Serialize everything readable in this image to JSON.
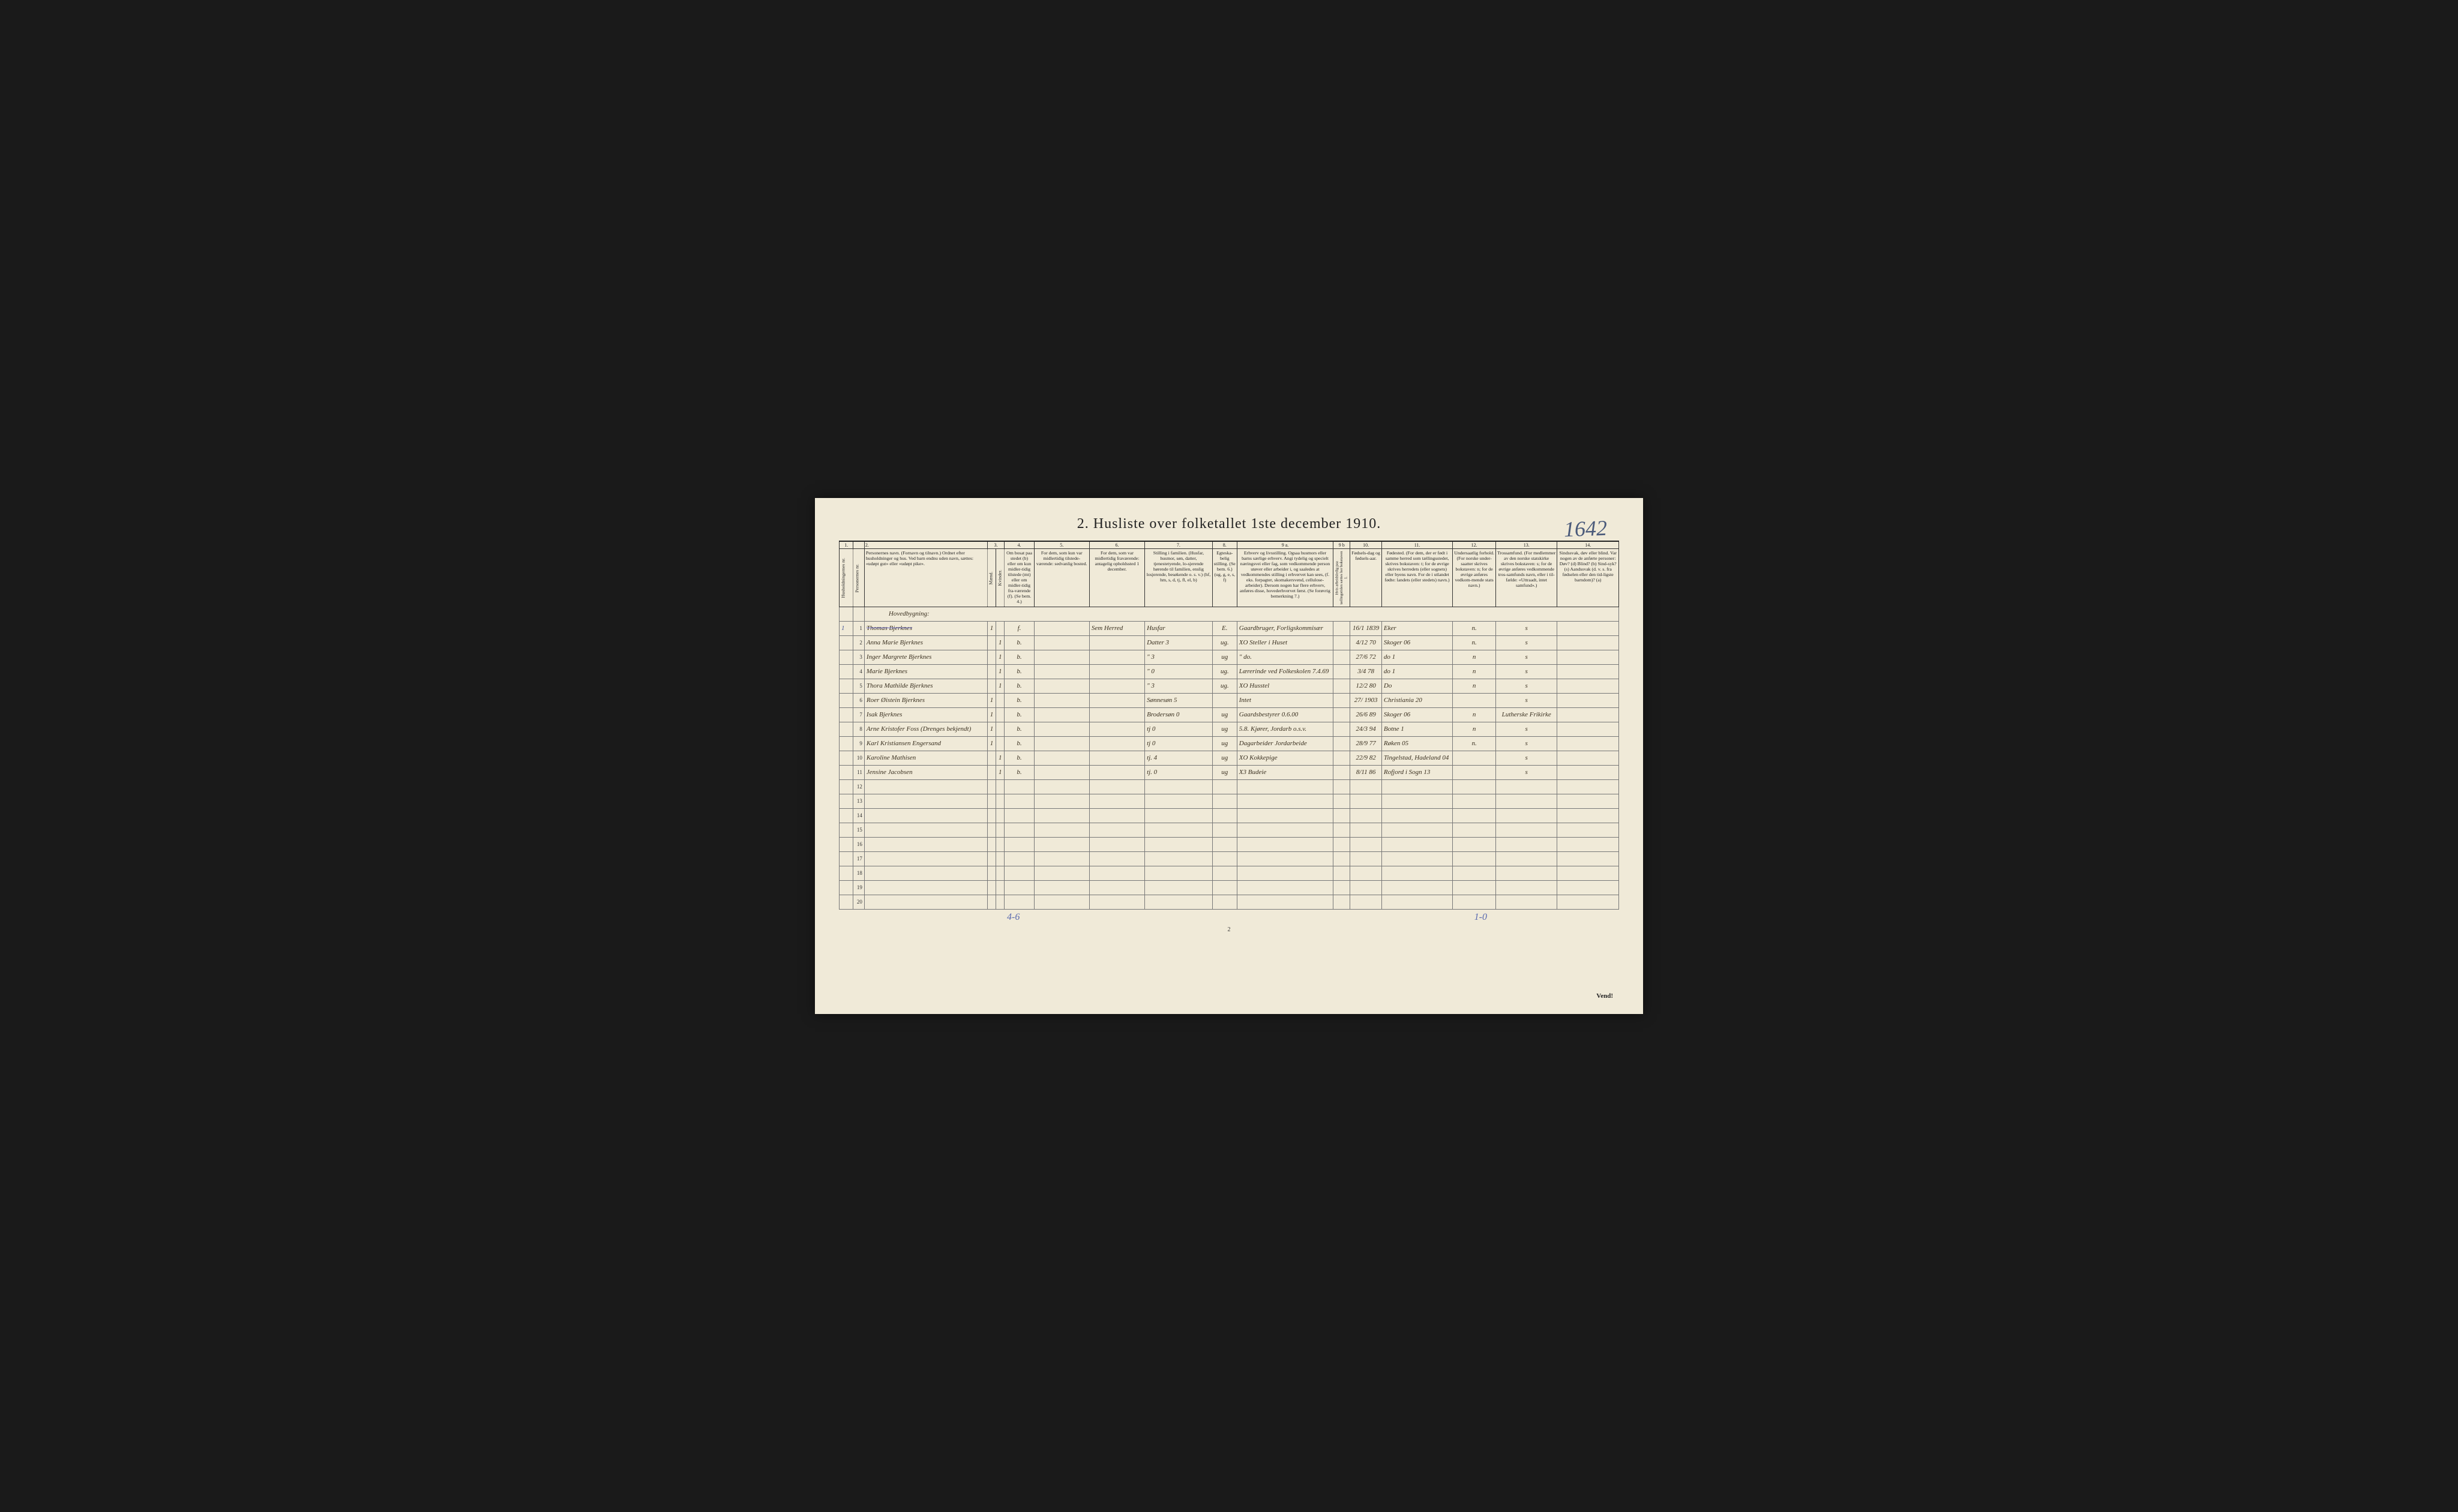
{
  "page_handwritten_number": "1642",
  "title": "2.  Husliste over folketallet 1ste december 1910.",
  "bottom_page": "2",
  "tally_left": "4-6",
  "tally_right": "1-0",
  "vend": "Vend!",
  "section_label": "Hovedbygning:",
  "columns": {
    "nums": [
      "1.",
      "",
      "2.",
      "3.",
      "",
      "4.",
      "5.",
      "6.",
      "7.",
      "8.",
      "9 a.",
      "9 b",
      "10.",
      "11.",
      "12.",
      "13.",
      "14."
    ],
    "h1": "Husholdningernes nr.",
    "h2": "Personernes nr.",
    "h3": "Personernes navn.\n(Fornavn og tilnavn.)\nOrdnet efter husholdninger og hus.\nVed barn endnu uden navn, sættes: «udøpt gut» eller «udøpt pike».",
    "h4m": "Mænd.",
    "h4k": "Kvinder.",
    "h4": "Kjøn.\nm. k.",
    "h5": "Om bosat paa stedet (b) eller om kun midler-tidig tilstede (mt) eller om midler-tidig fra-værende (f). (Se bem. 4.)",
    "h6": "For dem, som kun var midlertidig tilstede-værende:\nsedvanlig bosted.",
    "h7": "For dem, som var midlertidig fraværende:\nantagelig opholdssted 1 december.",
    "h8": "Stilling i familien.\n(Husfar, husmor, søn, datter, tjenestetyende, lo-sjerende hørende til familien, enslig losjerende, besøkende o. s. v.)\n(hf, hm, s, d, tj, fl, el, b)",
    "h9": "Egteska-belig stilling. (Se bem. 6.) (ug, g, e, s, f)",
    "h10": "Erhverv og livsstilling.\nOgsaa husmors eller barns særlige erhverv. Angi tydelig og specielt næringsvei eller fag, som vedkommende person utøver eller arbeider i, og saaledes at vedkommendes stilling i erhvervet kan sees, (f. eks. forpagter, skomakersvend, cellulose-arbeider). Dersom nogen har flere erhverv, anføres disse, hovederhvervet først. (Se forøvrig bemerkning 7.)",
    "h11": "Hvis arbeidsledig paa tællingstiden sættes her bokstaven l.",
    "h12": "Fødsels-dag og fødsels-aar.",
    "h13": "Fødested.\n(For dem, der er født i samme herred som tællingsstedet, skrives bokstaven: t; for de øvrige skrives herredets (eller sognets) eller byens navn. For de i utlandet fødte: landets (eller stedets) navn.)",
    "h14": "Undersaatlig forhold.\n(For norske under-saatter skrives bokstaven: n; for de øvrige anføres vedkom-mende stats navn.)",
    "h15": "Trossamfund.\n(For medlemmer av den norske statskirke skrives bokstaven: s; for de øvrige anføres vedkommende tros-samfunds navn, eller i til-fælde: «Uttraadt, intet samfund».)",
    "h16": "Sindssvak, døv eller blind.\nVar nogen av de anførte personer:\nDøv? (d)\nBlind? (b)\nSind-syk? (s)\nAandssvak (d. v. s. fra fødselen eller den tid-ligste barndom)? (a)"
  },
  "rows": [
    {
      "hh": "1",
      "n": "1",
      "name": "Thomas Bjerknes",
      "m": "1",
      "k": "",
      "res": "f.",
      "mt": "",
      "fr": "Sem Herred",
      "fam": "Husfar",
      "eg": "E.",
      "erv": "Gaardbruger, Forligskommisær",
      "al": "",
      "dob": "16/1 1839",
      "bst": "Eker",
      "nat": "n.",
      "rel": "s",
      "inf": ""
    },
    {
      "hh": "",
      "n": "2",
      "name": "Anna Marie Bjerknes",
      "m": "",
      "k": "1",
      "res": "b.",
      "mt": "",
      "fr": "",
      "fam": "Datter   3",
      "eg": "ug.",
      "erv": "XO  Steller i Huset",
      "al": "",
      "dob": "4/12 70",
      "bst": "Skoger 06",
      "nat": "n.",
      "rel": "s",
      "inf": ""
    },
    {
      "hh": "",
      "n": "3",
      "name": "Inger Margrete Bjerknes",
      "m": "",
      "k": "1",
      "res": "b.",
      "mt": "",
      "fr": "",
      "fam": "\"    3",
      "eg": "ug",
      "erv": "\"        do.",
      "al": "",
      "dob": "27/6 72",
      "bst": "do  1",
      "nat": "n",
      "rel": "s",
      "inf": ""
    },
    {
      "hh": "",
      "n": "4",
      "name": "Marie        Bjerknes",
      "m": "",
      "k": "1",
      "res": "b.",
      "mt": "",
      "fr": "",
      "fam": "\"    0",
      "eg": "ug.",
      "erv": "Lærerinde ved Folkeskolen  7.4.69",
      "al": "",
      "dob": "3/4 78",
      "bst": "do  1",
      "nat": "n",
      "rel": "s",
      "inf": ""
    },
    {
      "hh": "",
      "n": "5",
      "name": "Thora Mathilde Bjerknes",
      "m": "",
      "k": "1",
      "res": "b.",
      "mt": "",
      "fr": "",
      "fam": "\"    3",
      "eg": "ug.",
      "erv": "XO    Husstel",
      "al": "",
      "dob": "12/2 80",
      "bst": "Do",
      "nat": "n",
      "rel": "s",
      "inf": ""
    },
    {
      "hh": "",
      "n": "6",
      "name": "Roer Øistein   Bjerknes",
      "m": "1",
      "k": "",
      "res": "b.",
      "mt": "",
      "fr": "",
      "fam": "Sønnesøn 5",
      "eg": "",
      "erv": "Intet",
      "al": "",
      "dob": "27/ 1903",
      "bst": "Christiania 20",
      "nat": "",
      "rel": "s",
      "inf": ""
    },
    {
      "hh": "",
      "n": "7",
      "name": "Isak Bjerknes",
      "m": "1",
      "k": "",
      "res": "b.",
      "mt": "",
      "fr": "",
      "fam": "Brodersøn 0",
      "eg": "ug",
      "erv": "Gaardsbestyrer   0.6.00",
      "al": "",
      "dob": "26/6 89",
      "bst": "Skoger 06",
      "nat": "n",
      "rel": "Lutherske Frikirke",
      "inf": ""
    },
    {
      "hh": "",
      "n": "8",
      "name": "Arne Kristofer Foss (Drenges bekjendt)",
      "m": "1",
      "k": "",
      "res": "b.",
      "mt": "",
      "fr": "",
      "fam": "tj    0",
      "eg": "ug",
      "erv": "5.8. Kjører, Jordarb o.s.v.",
      "al": "",
      "dob": "24/3 94",
      "bst": "Botne 1",
      "nat": "n",
      "rel": "s",
      "inf": ""
    },
    {
      "hh": "",
      "n": "9",
      "name": "Karl Kristiansen Engersand",
      "m": "1",
      "k": "",
      "res": "b.",
      "mt": "",
      "fr": "",
      "fam": "tj    0",
      "eg": "ug",
      "erv": "Dagarbeider  Jordarbeide",
      "al": "",
      "dob": "28/9 77",
      "bst": "Røken 05",
      "nat": "n.",
      "rel": "s",
      "inf": ""
    },
    {
      "hh": "",
      "n": "10",
      "name": "Karoline Mathisen",
      "m": "",
      "k": "1",
      "res": "b.",
      "mt": "",
      "fr": "",
      "fam": "tj.   4",
      "eg": "ug",
      "erv": "XO Kokkepige",
      "al": "",
      "dob": "22/9 82",
      "bst": "Tingelstad, Hadeland 04",
      "nat": "",
      "rel": "s",
      "inf": ""
    },
    {
      "hh": "",
      "n": "11",
      "name": "Jensine Jacobsen",
      "m": "",
      "k": "1",
      "res": "b.",
      "mt": "",
      "fr": "",
      "fam": "tj.   0",
      "eg": "ug",
      "erv": "X3 Budeie",
      "al": "",
      "dob": "8/11 86",
      "bst": "Rofjord i Sogn 13",
      "nat": "",
      "rel": "s",
      "inf": ""
    }
  ],
  "empty_rows": [
    12,
    13,
    14,
    15,
    16,
    17,
    18,
    19,
    20
  ]
}
